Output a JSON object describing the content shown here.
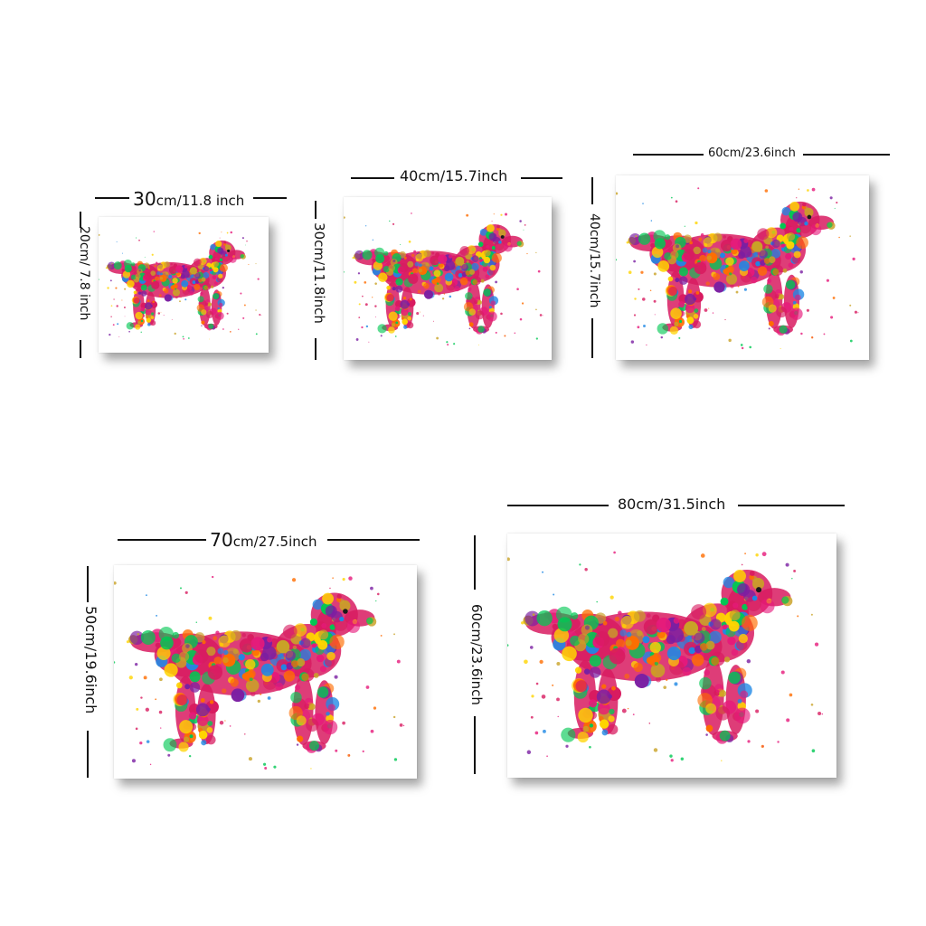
{
  "products": [
    {
      "id": "30x20",
      "width": {
        "value": "30",
        "unit": "cm",
        "imperial": "/11.8 inch"
      },
      "height": {
        "value": "20",
        "unit": "cm",
        "imperial": "/ 7.8 inch"
      }
    },
    {
      "id": "40x30",
      "width": {
        "text": "40cm/15.7inch"
      },
      "height": {
        "text": "30cm/11.8inch"
      }
    },
    {
      "id": "60x40",
      "width": {
        "text": "60cm/23.6inch"
      },
      "height": {
        "text": "40cm/15.7inch"
      }
    },
    {
      "id": "70x50",
      "width": {
        "value": "70",
        "unit": "cm",
        "imperial": "/27.5inch"
      },
      "height": {
        "value": "50",
        "unit": "cm",
        "imperial": "/19.6inch"
      }
    },
    {
      "id": "80x60",
      "width": {
        "text": "80cm/31.5inch"
      },
      "height": {
        "text": "60cm/23.6inch"
      }
    }
  ],
  "artwork": {
    "subject": "watercolor-dog-silhouette",
    "palette": [
      "#e6197a",
      "#ffd400",
      "#1e88e5",
      "#7b1fa2",
      "#ff6d00",
      "#00c853",
      "#d81b60",
      "#c9a227"
    ]
  }
}
